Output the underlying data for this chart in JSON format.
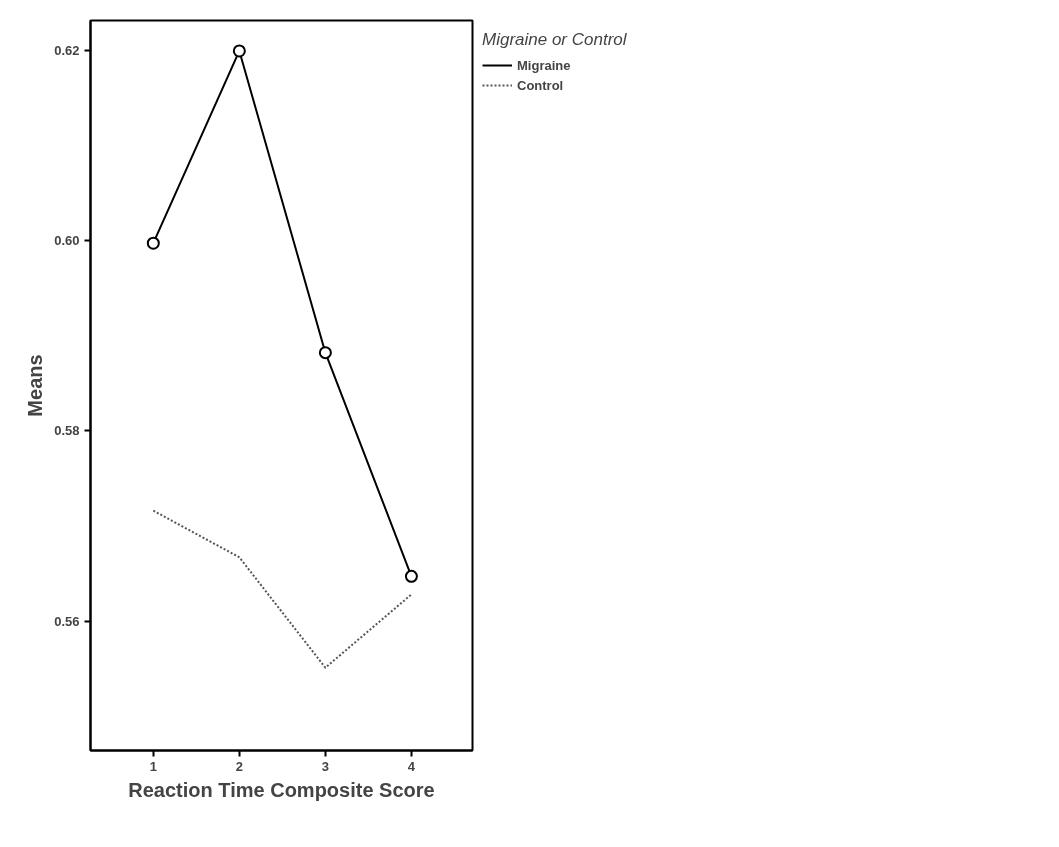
{
  "chart_data": {
    "type": "line",
    "xlabel": "Reaction Time Composite Score",
    "ylabel": "Means",
    "legend_title": "Migraine or Control",
    "x": [
      1,
      2,
      3,
      4
    ],
    "series": [
      {
        "name": "Migraine",
        "color": "#000000",
        "values": [
          0.5997,
          0.6199,
          0.5882,
          0.5647
        ],
        "marker": "circle",
        "line_style": "solid"
      },
      {
        "name": "Control",
        "color": "#555555",
        "values": [
          0.5716,
          0.5667,
          0.5551,
          0.5628
        ],
        "marker": "none",
        "line_style": "dotted"
      }
    ],
    "xlim": [
      0.27,
      4.71
    ],
    "xticks": [
      1,
      2,
      3,
      4
    ],
    "ylim": [
      0.5464,
      0.6231
    ],
    "yticks": [
      {
        "value": 0.56,
        "label": "0.56"
      },
      {
        "value": 0.58,
        "label": "0.58"
      },
      {
        "value": 0.6,
        "label": "0.60"
      },
      {
        "value": 0.62,
        "label": "0.62"
      }
    ],
    "grid": false,
    "legend": "top right"
  }
}
